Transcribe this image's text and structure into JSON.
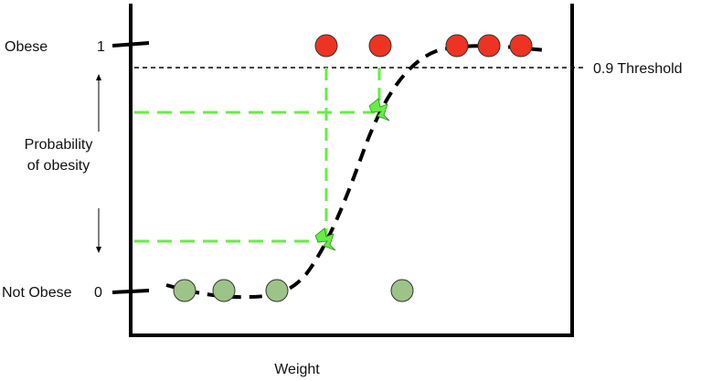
{
  "labels": {
    "obese": "Obese",
    "not_obese": "Not Obese",
    "tick_one": "1",
    "tick_zero": "0",
    "y_axis_line1": "Probability",
    "y_axis_line2": "of obesity",
    "threshold": "0.9 Threshold",
    "x_axis": "Weight"
  },
  "colors": {
    "obese_point": "#ee3322",
    "not_obese_point": "#9ec388",
    "projection": "#66ee44",
    "curve": "#000000",
    "threshold_line": "#000000",
    "marker_fill": "#66ee44"
  },
  "icons": {
    "marker": "lightning-bolt-icon"
  }
}
